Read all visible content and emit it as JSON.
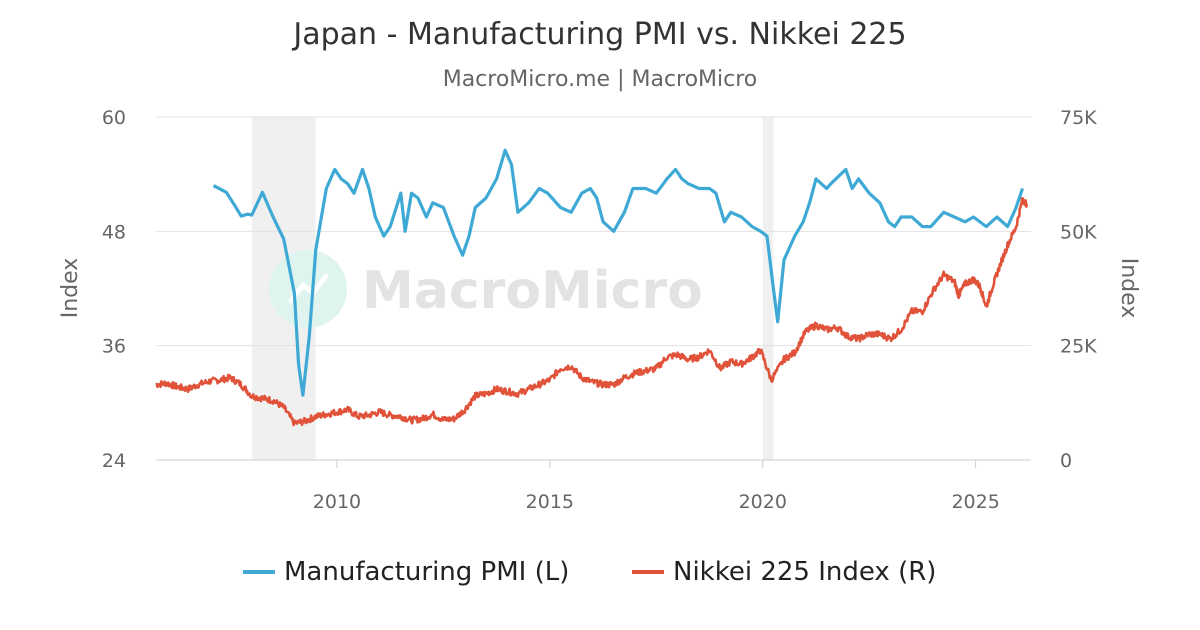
{
  "chart_data": {
    "type": "line",
    "title": "Japan - Manufacturing PMI vs. Nikkei 225",
    "subtitle": "MacroMicro.me | MacroMicro",
    "watermark": "MacroMicro",
    "x_ticks": [
      2010,
      2015,
      2020,
      2025
    ],
    "xlim": [
      2005.75,
      2026.3
    ],
    "left_axis": {
      "label": "Index",
      "range": [
        24,
        60
      ],
      "ticks": [
        "24",
        "36",
        "48",
        "60"
      ],
      "tick_values": [
        24,
        36,
        48,
        60
      ]
    },
    "right_axis": {
      "label": "Index",
      "range": [
        0,
        75000
      ],
      "ticks": [
        "0",
        "25K",
        "50K",
        "75K"
      ],
      "tick_values": [
        0,
        25000,
        50000,
        75000
      ]
    },
    "recession_shading": [
      [
        2008.0,
        2009.5
      ],
      [
        2020.0,
        2020.25
      ]
    ],
    "series": [
      {
        "name": "Manufacturing PMI (L)",
        "axis": "left",
        "color": "#3fa9d5",
        "points": [
          [
            2007.1,
            52.8
          ],
          [
            2007.4,
            52.1
          ],
          [
            2007.6,
            50.7
          ],
          [
            2007.75,
            49.6
          ],
          [
            2007.9,
            49.8
          ],
          [
            2008.0,
            49.7
          ],
          [
            2008.25,
            52.1
          ],
          [
            2008.5,
            49.5
          ],
          [
            2008.75,
            47.2
          ],
          [
            2009.0,
            41.5
          ],
          [
            2009.1,
            34.0
          ],
          [
            2009.2,
            30.8
          ],
          [
            2009.35,
            37.0
          ],
          [
            2009.5,
            46.0
          ],
          [
            2009.75,
            52.5
          ],
          [
            2009.95,
            54.5
          ],
          [
            2010.1,
            53.5
          ],
          [
            2010.25,
            53.0
          ],
          [
            2010.4,
            52.0
          ],
          [
            2010.6,
            54.5
          ],
          [
            2010.75,
            52.5
          ],
          [
            2010.9,
            49.5
          ],
          [
            2011.1,
            47.5
          ],
          [
            2011.25,
            48.5
          ],
          [
            2011.5,
            52.0
          ],
          [
            2011.6,
            48.0
          ],
          [
            2011.75,
            52.0
          ],
          [
            2011.9,
            51.5
          ],
          [
            2012.1,
            49.5
          ],
          [
            2012.25,
            51.0
          ],
          [
            2012.5,
            50.5
          ],
          [
            2012.75,
            47.5
          ],
          [
            2012.95,
            45.5
          ],
          [
            2013.1,
            47.5
          ],
          [
            2013.25,
            50.5
          ],
          [
            2013.5,
            51.5
          ],
          [
            2013.75,
            53.5
          ],
          [
            2013.95,
            56.5
          ],
          [
            2014.1,
            55.0
          ],
          [
            2014.25,
            50.0
          ],
          [
            2014.5,
            51.0
          ],
          [
            2014.75,
            52.5
          ],
          [
            2014.95,
            52.0
          ],
          [
            2015.25,
            50.5
          ],
          [
            2015.5,
            50.0
          ],
          [
            2015.75,
            52.0
          ],
          [
            2015.95,
            52.5
          ],
          [
            2016.1,
            51.5
          ],
          [
            2016.25,
            49.0
          ],
          [
            2016.5,
            48.0
          ],
          [
            2016.75,
            50.0
          ],
          [
            2016.95,
            52.5
          ],
          [
            2017.25,
            52.5
          ],
          [
            2017.5,
            52.0
          ],
          [
            2017.75,
            53.5
          ],
          [
            2017.95,
            54.5
          ],
          [
            2018.1,
            53.5
          ],
          [
            2018.25,
            53.0
          ],
          [
            2018.5,
            52.5
          ],
          [
            2018.75,
            52.5
          ],
          [
            2018.9,
            52.0
          ],
          [
            2019.1,
            49.0
          ],
          [
            2019.25,
            50.0
          ],
          [
            2019.5,
            49.5
          ],
          [
            2019.75,
            48.5
          ],
          [
            2019.95,
            48.0
          ],
          [
            2020.1,
            47.5
          ],
          [
            2020.25,
            42.0
          ],
          [
            2020.35,
            38.5
          ],
          [
            2020.5,
            45.0
          ],
          [
            2020.75,
            47.5
          ],
          [
            2020.95,
            49.0
          ],
          [
            2021.1,
            51.0
          ],
          [
            2021.25,
            53.5
          ],
          [
            2021.5,
            52.5
          ],
          [
            2021.6,
            53.0
          ],
          [
            2021.95,
            54.5
          ],
          [
            2022.1,
            52.5
          ],
          [
            2022.25,
            53.5
          ],
          [
            2022.5,
            52.0
          ],
          [
            2022.75,
            51.0
          ],
          [
            2022.95,
            49.0
          ],
          [
            2023.1,
            48.5
          ],
          [
            2023.25,
            49.5
          ],
          [
            2023.5,
            49.5
          ],
          [
            2023.75,
            48.5
          ],
          [
            2023.95,
            48.5
          ],
          [
            2024.25,
            50.0
          ],
          [
            2024.5,
            49.5
          ],
          [
            2024.75,
            49.0
          ],
          [
            2024.95,
            49.5
          ],
          [
            2025.25,
            48.5
          ],
          [
            2025.5,
            49.5
          ],
          [
            2025.75,
            48.5
          ],
          [
            2025.95,
            50.5
          ],
          [
            2026.1,
            52.5
          ]
        ]
      },
      {
        "name": "Nikkei 225 Index (R)",
        "axis": "right",
        "color": "#e0533a",
        "points": [
          [
            2005.75,
            16500
          ],
          [
            2006.0,
            16800
          ],
          [
            2006.25,
            16000
          ],
          [
            2006.5,
            15500
          ],
          [
            2006.75,
            16500
          ],
          [
            2007.0,
            17200
          ],
          [
            2007.25,
            17500
          ],
          [
            2007.5,
            18000
          ],
          [
            2007.75,
            16500
          ],
          [
            2008.0,
            14000
          ],
          [
            2008.25,
            13500
          ],
          [
            2008.5,
            13000
          ],
          [
            2008.75,
            11500
          ],
          [
            2009.0,
            8000
          ],
          [
            2009.25,
            8500
          ],
          [
            2009.5,
            9500
          ],
          [
            2009.75,
            10000
          ],
          [
            2010.0,
            10500
          ],
          [
            2010.25,
            11000
          ],
          [
            2010.5,
            9500
          ],
          [
            2010.75,
            9800
          ],
          [
            2011.0,
            10500
          ],
          [
            2011.25,
            9800
          ],
          [
            2011.5,
            9500
          ],
          [
            2011.75,
            8700
          ],
          [
            2012.0,
            9000
          ],
          [
            2012.25,
            10000
          ],
          [
            2012.5,
            8800
          ],
          [
            2012.75,
            9000
          ],
          [
            2013.0,
            11000
          ],
          [
            2013.25,
            14000
          ],
          [
            2013.5,
            14500
          ],
          [
            2013.75,
            15500
          ],
          [
            2014.0,
            15000
          ],
          [
            2014.25,
            14500
          ],
          [
            2014.5,
            15500
          ],
          [
            2014.75,
            16500
          ],
          [
            2015.0,
            17500
          ],
          [
            2015.25,
            20000
          ],
          [
            2015.5,
            20500
          ],
          [
            2015.75,
            18000
          ],
          [
            2016.0,
            17000
          ],
          [
            2016.25,
            16500
          ],
          [
            2016.5,
            16500
          ],
          [
            2016.75,
            18000
          ],
          [
            2017.0,
            19000
          ],
          [
            2017.25,
            19500
          ],
          [
            2017.5,
            20000
          ],
          [
            2017.75,
            22500
          ],
          [
            2018.0,
            23000
          ],
          [
            2018.25,
            22000
          ],
          [
            2018.5,
            22500
          ],
          [
            2018.75,
            24000
          ],
          [
            2019.0,
            20000
          ],
          [
            2019.25,
            21500
          ],
          [
            2019.5,
            21000
          ],
          [
            2019.75,
            22500
          ],
          [
            2019.95,
            24000
          ],
          [
            2020.2,
            17500
          ],
          [
            2020.5,
            22000
          ],
          [
            2020.75,
            23500
          ],
          [
            2021.0,
            28000
          ],
          [
            2021.25,
            29500
          ],
          [
            2021.5,
            28500
          ],
          [
            2021.75,
            29000
          ],
          [
            2022.0,
            27000
          ],
          [
            2022.25,
            26500
          ],
          [
            2022.5,
            27500
          ],
          [
            2022.75,
            27500
          ],
          [
            2023.0,
            26500
          ],
          [
            2023.25,
            28500
          ],
          [
            2023.5,
            32500
          ],
          [
            2023.75,
            32500
          ],
          [
            2024.0,
            37000
          ],
          [
            2024.25,
            40500
          ],
          [
            2024.5,
            39000
          ],
          [
            2024.6,
            36000
          ],
          [
            2024.75,
            38500
          ],
          [
            2024.95,
            39500
          ],
          [
            2025.1,
            38000
          ],
          [
            2025.25,
            33500
          ],
          [
            2025.4,
            38000
          ],
          [
            2025.55,
            42000
          ],
          [
            2025.75,
            47000
          ],
          [
            2025.95,
            51000
          ],
          [
            2026.1,
            57000
          ],
          [
            2026.2,
            56000
          ]
        ]
      }
    ],
    "legend_position": "bottom"
  }
}
